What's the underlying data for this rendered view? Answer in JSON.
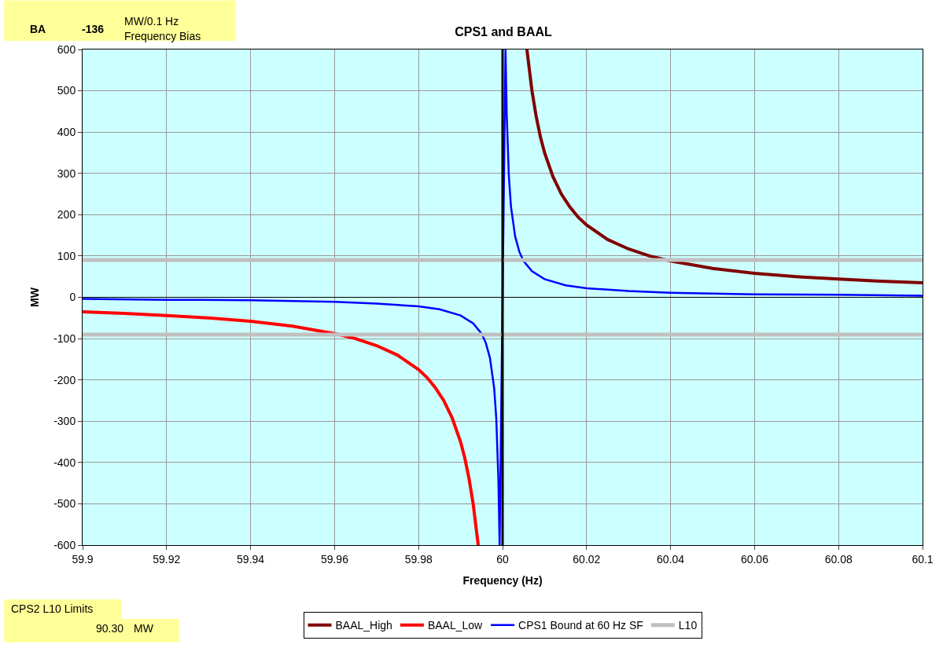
{
  "chart_data": {
    "type": "line",
    "title": "CPS1 and BAAL",
    "xlabel": "Frequency (Hz)",
    "ylabel": "MW",
    "xlim": [
      59.9,
      60.1
    ],
    "xticks": [
      59.9,
      59.92,
      59.94,
      59.96,
      59.98,
      60,
      60.02,
      60.04,
      60.06,
      60.08,
      60.1
    ],
    "ylim": [
      -600,
      600
    ],
    "yticks": [
      -600,
      -500,
      -400,
      -300,
      -200,
      -100,
      0,
      100,
      200,
      300,
      400,
      500,
      600
    ],
    "grid": true,
    "legend": "bottom",
    "marker": "none",
    "line_style": "solid",
    "series": [
      {
        "name": "BAAL_High",
        "color": "#800000",
        "x": [
          60.0058,
          60.006,
          60.007,
          60.008,
          60.009,
          60.01,
          60.012,
          60.014,
          60.016,
          60.018,
          60.02,
          60.025,
          60.03,
          60.035,
          60.04,
          60.05,
          60.06,
          60.07,
          60.08,
          60.09,
          60.1
        ],
        "values": [
          600,
          583,
          500,
          438,
          389,
          350,
          292,
          250,
          219,
          194,
          175,
          140,
          117,
          100,
          88,
          70,
          58,
          50,
          44,
          39,
          35
        ]
      },
      {
        "name": "BAAL_Low",
        "color": "#ff0000",
        "x": [
          59.9,
          59.91,
          59.92,
          59.93,
          59.94,
          59.95,
          59.96,
          59.965,
          59.97,
          59.975,
          59.98,
          59.982,
          59.984,
          59.986,
          59.988,
          59.99,
          59.991,
          59.992,
          59.993,
          59.994,
          59.9942
        ],
        "values": [
          -35,
          -39,
          -44,
          -50,
          -58,
          -70,
          -88,
          -100,
          -117,
          -140,
          -175,
          -194,
          -219,
          -250,
          -292,
          -350,
          -389,
          -438,
          -500,
          -583,
          -600
        ]
      },
      {
        "name": "CPS1 Bound at 60 Hz SF",
        "color": "#0000ff",
        "x": [
          59.9,
          59.92,
          59.94,
          59.96,
          59.97,
          59.98,
          59.985,
          59.99,
          59.993,
          59.995,
          59.996,
          59.997,
          59.998,
          59.9985,
          59.999,
          59.9993,
          60.0007,
          60.001,
          60.0015,
          60.002,
          60.003,
          60.004,
          60.005,
          60.007,
          60.01,
          60.015,
          60.02,
          60.03,
          60.04,
          60.06,
          60.08,
          60.1
        ],
        "values": [
          -4,
          -6,
          -7,
          -11,
          -15,
          -22,
          -29,
          -44,
          -63,
          -88,
          -110,
          -147,
          -220,
          -293,
          -440,
          -600,
          600,
          440,
          293,
          220,
          147,
          110,
          88,
          63,
          44,
          29,
          22,
          15,
          11,
          7,
          6,
          4
        ]
      },
      {
        "name": "L10",
        "color": "#c0c0c0",
        "x": [
          59.9,
          60.1
        ],
        "values": [
          90.3,
          90.3
        ]
      },
      {
        "color": "#c0c0c0",
        "x": [
          59.9,
          60.1
        ],
        "values": [
          -90.3,
          -90.3
        ]
      }
    ],
    "ref_lines": [
      {
        "axis": "x",
        "value": 60,
        "color": "#000000"
      }
    ],
    "annotations": [
      "BA",
      "-136",
      "MW/0.1 Hz",
      "Frequency Bias",
      "CPS2 L10 Limits",
      "90.30",
      "MW"
    ]
  }
}
